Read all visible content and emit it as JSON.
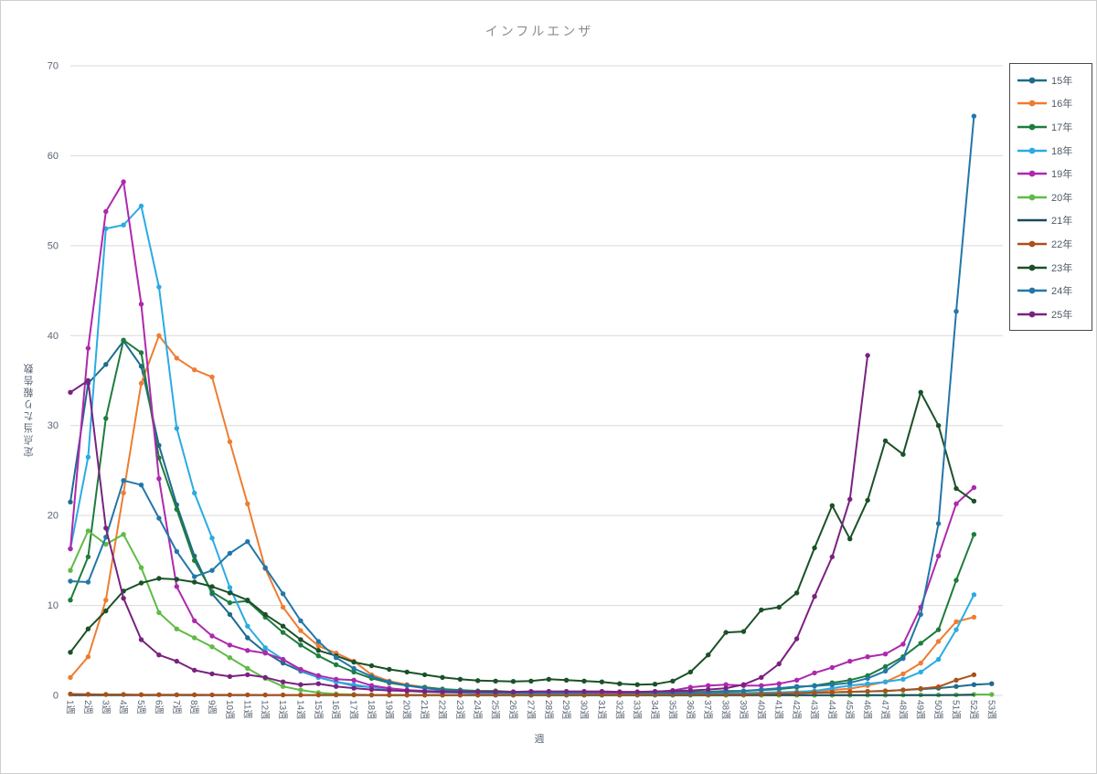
{
  "chart_data": {
    "type": "line",
    "title": "インフルエンザ",
    "xlabel": "週",
    "ylabel": "定点当たり報告数",
    "ylim": [
      0,
      70
    ],
    "y_ticks": [
      "0",
      "10",
      "20",
      "30",
      "40",
      "50",
      "60",
      "70"
    ],
    "grid": true,
    "legend_position": "right",
    "grid_color": "#d9d9d9",
    "axis_text_color": "#5a6472",
    "title_color": "#8c8c8c",
    "x_ticks": [
      "1週",
      "2週",
      "3週",
      "4週",
      "5週",
      "6週",
      "7週",
      "8週",
      "9週",
      "10週",
      "11週",
      "12週",
      "13週",
      "14週",
      "15週",
      "16週",
      "17週",
      "18週",
      "19週",
      "20週",
      "21週",
      "22週",
      "23週",
      "24週",
      "25週",
      "26週",
      "27週",
      "28週",
      "29週",
      "30週",
      "31週",
      "32週",
      "33週",
      "34週",
      "35週",
      "36週",
      "37週",
      "38週",
      "39週",
      "40週",
      "41週",
      "42週",
      "43週",
      "44週",
      "45週",
      "46週",
      "47週",
      "48週",
      "49週",
      "50週",
      "51週",
      "52週",
      "53週"
    ],
    "series": [
      {
        "name": "15年",
        "color": "#1e6b8e",
        "marker": true,
        "values": [
          21.5,
          34.7,
          36.8,
          39.4,
          36.6,
          27.8,
          21.2,
          15.5,
          11.3,
          9.0,
          6.4,
          4.8,
          3.6,
          2.7,
          2.0,
          1.5,
          1.1,
          0.9,
          0.7,
          0.5,
          0.4,
          0.35,
          0.3,
          0.25,
          0.2,
          0.2,
          0.15,
          0.15,
          0.1,
          0.1,
          0.1,
          0.1,
          0.1,
          0.1,
          0.1,
          0.1,
          0.1,
          0.15,
          0.15,
          0.2,
          0.2,
          0.25,
          0.3,
          0.35,
          0.4,
          0.45,
          0.5,
          0.6,
          0.7,
          0.8,
          1.0,
          1.2,
          1.3
        ]
      },
      {
        "name": "16年",
        "color": "#ee7d31",
        "marker": true,
        "values": [
          2.0,
          4.3,
          10.6,
          22.5,
          34.7,
          40.0,
          37.5,
          36.2,
          35.4,
          28.2,
          21.3,
          14.1,
          9.8,
          7.2,
          5.5,
          4.7,
          3.8,
          2.3,
          1.6,
          1.2,
          0.9,
          0.7,
          0.5,
          0.4,
          0.35,
          0.3,
          0.25,
          0.2,
          0.2,
          0.2,
          0.2,
          0.15,
          0.15,
          0.15,
          0.15,
          0.2,
          0.2,
          0.25,
          0.25,
          0.3,
          0.35,
          0.4,
          0.5,
          0.6,
          0.75,
          1.1,
          1.5,
          2.4,
          3.6,
          6.0,
          8.2,
          8.7
        ]
      },
      {
        "name": "17年",
        "color": "#1e7c3d",
        "marker": true,
        "values": [
          10.6,
          15.4,
          30.8,
          39.5,
          38.1,
          26.4,
          20.7,
          15.0,
          11.5,
          10.3,
          10.5,
          8.7,
          7.0,
          5.6,
          4.4,
          3.4,
          2.6,
          1.9,
          1.4,
          1.1,
          0.9,
          0.7,
          0.6,
          0.5,
          0.5,
          0.4,
          0.4,
          0.4,
          0.4,
          0.4,
          0.4,
          0.3,
          0.3,
          0.3,
          0.3,
          0.4,
          0.4,
          0.5,
          0.5,
          0.6,
          0.7,
          0.9,
          1.1,
          1.4,
          1.7,
          2.2,
          3.2,
          4.3,
          5.8,
          7.3,
          12.8,
          17.9
        ]
      },
      {
        "name": "18年",
        "color": "#2aabe2",
        "marker": true,
        "values": [
          16.3,
          26.5,
          51.9,
          52.3,
          54.4,
          45.4,
          29.7,
          22.5,
          17.5,
          12.0,
          7.7,
          5.3,
          4.0,
          2.8,
          2.0,
          1.5,
          1.2,
          0.9,
          0.7,
          0.55,
          0.45,
          0.4,
          0.3,
          0.25,
          0.2,
          0.2,
          0.15,
          0.15,
          0.15,
          0.1,
          0.1,
          0.1,
          0.1,
          0.1,
          0.15,
          0.15,
          0.2,
          0.2,
          0.25,
          0.3,
          0.35,
          0.4,
          0.5,
          0.8,
          1.1,
          1.3,
          1.5,
          1.8,
          2.6,
          4.0,
          7.3,
          11.2
        ]
      },
      {
        "name": "19年",
        "color": "#ae28ae",
        "marker": true,
        "values": [
          16.3,
          38.6,
          53.8,
          57.1,
          43.5,
          24.1,
          12.1,
          8.3,
          6.6,
          5.6,
          5.0,
          4.7,
          4.0,
          2.9,
          2.2,
          1.8,
          1.7,
          1.1,
          0.8,
          0.6,
          0.5,
          0.45,
          0.4,
          0.4,
          0.35,
          0.35,
          0.3,
          0.3,
          0.3,
          0.3,
          0.3,
          0.3,
          0.35,
          0.4,
          0.55,
          0.9,
          1.1,
          1.2,
          1.1,
          1.1,
          1.3,
          1.7,
          2.5,
          3.1,
          3.8,
          4.3,
          4.6,
          5.7,
          9.8,
          15.5,
          21.3,
          23.1
        ]
      },
      {
        "name": "20年",
        "color": "#5fbb46",
        "marker": true,
        "values": [
          13.9,
          18.3,
          16.8,
          17.9,
          14.2,
          9.2,
          7.4,
          6.4,
          5.4,
          4.2,
          3.0,
          1.9,
          1.0,
          0.6,
          0.3,
          0.15,
          0.1,
          0.05,
          0.03,
          0.02,
          0.02,
          0.02,
          0.02,
          0.02,
          0.02,
          0.02,
          0.02,
          0.02,
          0.02,
          0.02,
          0.02,
          0.02,
          0.02,
          0.02,
          0.02,
          0.02,
          0.02,
          0.02,
          0.02,
          0.02,
          0.02,
          0.02,
          0.02,
          0.02,
          0.02,
          0.03,
          0.03,
          0.04,
          0.05,
          0.05,
          0.06,
          0.1,
          0.1
        ]
      },
      {
        "name": "21年",
        "color": "#1a4a5f",
        "marker": false,
        "values": [
          0.02,
          0.02,
          0.02,
          0.02,
          0.02,
          0.02,
          0.02,
          0.02,
          0.02,
          0.02,
          0.02,
          0.02,
          0.02,
          0.02,
          0.02,
          0.02,
          0.02,
          0.02,
          0.02,
          0.02,
          0.02,
          0.02,
          0.02,
          0.02,
          0.02,
          0.02,
          0.02,
          0.02,
          0.02,
          0.02,
          0.02,
          0.02,
          0.02,
          0.02,
          0.02,
          0.02,
          0.02,
          0.02,
          0.02,
          0.02,
          0.02,
          0.02,
          0.02,
          0.02,
          0.02,
          0.02,
          0.02,
          0.02,
          0.02,
          0.03,
          0.04,
          0.06
        ]
      },
      {
        "name": "22年",
        "color": "#a9511b",
        "marker": true,
        "values": [
          0.15,
          0.12,
          0.1,
          0.1,
          0.08,
          0.08,
          0.07,
          0.07,
          0.06,
          0.06,
          0.06,
          0.05,
          0.05,
          0.05,
          0.05,
          0.05,
          0.05,
          0.05,
          0.05,
          0.05,
          0.05,
          0.05,
          0.05,
          0.05,
          0.05,
          0.05,
          0.05,
          0.06,
          0.06,
          0.07,
          0.07,
          0.08,
          0.08,
          0.09,
          0.1,
          0.1,
          0.1,
          0.12,
          0.12,
          0.15,
          0.2,
          0.25,
          0.3,
          0.35,
          0.4,
          0.45,
          0.5,
          0.6,
          0.75,
          0.95,
          1.7,
          2.3
        ]
      },
      {
        "name": "23年",
        "color": "#1b5128",
        "marker": true,
        "values": [
          4.8,
          7.4,
          9.4,
          11.6,
          12.5,
          13.0,
          12.9,
          12.6,
          12.1,
          11.4,
          10.6,
          9.0,
          7.7,
          6.2,
          5.0,
          4.4,
          3.7,
          3.3,
          2.9,
          2.6,
          2.3,
          2.0,
          1.8,
          1.65,
          1.6,
          1.55,
          1.6,
          1.8,
          1.7,
          1.6,
          1.5,
          1.3,
          1.2,
          1.25,
          1.6,
          2.6,
          4.5,
          7.0,
          7.1,
          9.5,
          9.8,
          11.4,
          16.4,
          21.1,
          17.4,
          21.7,
          28.3,
          26.8,
          33.7,
          30.0,
          23.0,
          21.6
        ]
      },
      {
        "name": "24年",
        "color": "#2377a8",
        "marker": true,
        "values": [
          12.7,
          12.6,
          17.6,
          23.9,
          23.4,
          19.7,
          16.0,
          13.2,
          13.9,
          15.8,
          17.1,
          14.2,
          11.3,
          8.3,
          6.0,
          4.2,
          3.0,
          2.1,
          1.5,
          1.1,
          0.8,
          0.6,
          0.5,
          0.4,
          0.35,
          0.3,
          0.3,
          0.3,
          0.3,
          0.35,
          0.4,
          0.4,
          0.35,
          0.3,
          0.3,
          0.3,
          0.35,
          0.4,
          0.5,
          0.65,
          0.8,
          1.0,
          1.05,
          1.2,
          1.4,
          1.9,
          2.7,
          4.1,
          9.0,
          19.1,
          42.7,
          64.4
        ]
      },
      {
        "name": "25年",
        "color": "#7a2280",
        "marker": true,
        "values": [
          33.7,
          35.0,
          18.6,
          10.8,
          6.2,
          4.5,
          3.8,
          2.8,
          2.4,
          2.1,
          2.3,
          2.0,
          1.5,
          1.2,
          1.3,
          1.0,
          0.8,
          0.65,
          0.55,
          0.5,
          0.45,
          0.4,
          0.4,
          0.4,
          0.4,
          0.4,
          0.45,
          0.45,
          0.45,
          0.45,
          0.45,
          0.4,
          0.4,
          0.45,
          0.5,
          0.55,
          0.65,
          0.8,
          1.2,
          2.0,
          3.5,
          6.3,
          11.0,
          15.4,
          21.8,
          37.8
        ]
      }
    ]
  }
}
